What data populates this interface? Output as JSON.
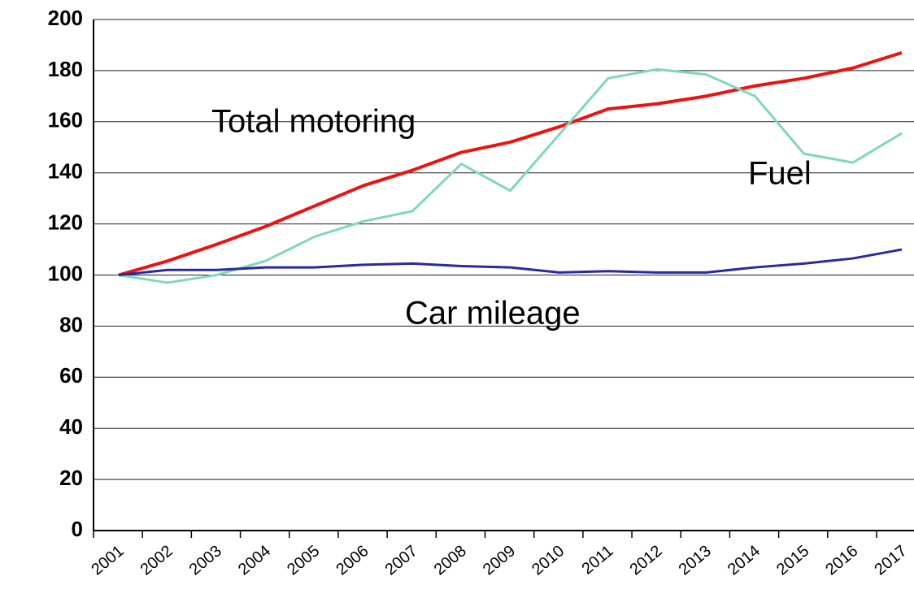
{
  "chart_data": {
    "type": "line",
    "categories": [
      "2001",
      "2002",
      "2003",
      "2004",
      "2005",
      "2006",
      "2007",
      "2008",
      "2009",
      "2010",
      "2011",
      "2012",
      "2013",
      "2014",
      "2015",
      "2016",
      "2017"
    ],
    "series": [
      {
        "name": "Total motoring",
        "color": "#ee1111",
        "values": [
          100,
          105.5,
          112,
          119,
          127,
          135,
          141,
          148,
          152,
          158,
          165,
          167,
          170,
          174,
          177,
          181,
          187
        ]
      },
      {
        "name": "Fuel",
        "color": "#80d8b8",
        "values": [
          100,
          97,
          100,
          105.5,
          115,
          121,
          125,
          143.5,
          133,
          155,
          177,
          180.5,
          178.5,
          170,
          147.5,
          144,
          155.5
        ]
      },
      {
        "name": "Car mileage",
        "color": "#2a2aa0",
        "values": [
          100,
          102,
          102,
          103,
          103,
          104,
          104.5,
          103.5,
          103,
          101,
          101.5,
          101,
          101,
          103,
          104.5,
          106.5,
          110
        ]
      }
    ],
    "ylim": [
      0,
      200
    ],
    "yticks": [
      0,
      20,
      40,
      60,
      80,
      100,
      120,
      140,
      160,
      180,
      200
    ],
    "grid": true
  }
}
